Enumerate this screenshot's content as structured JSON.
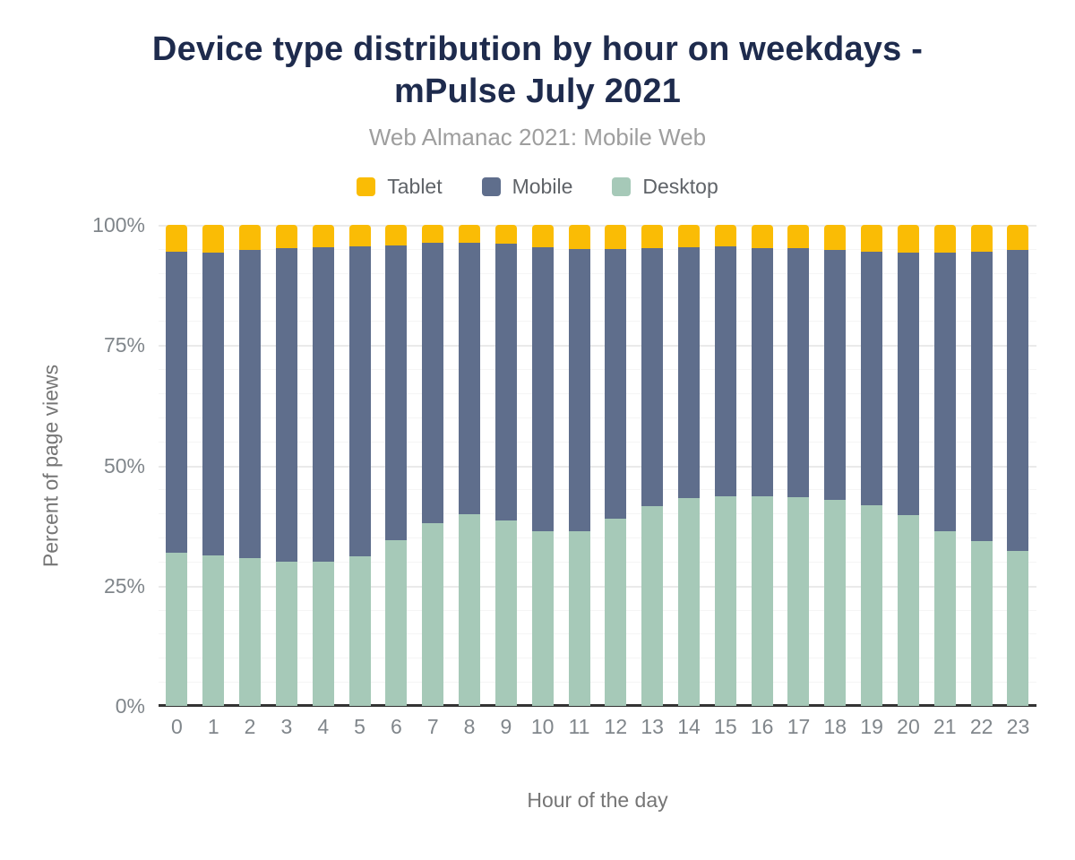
{
  "header": {
    "title_lines": [
      "Device type distribution by hour on weekdays -",
      "mPulse July 2021"
    ],
    "subtitle": "Web Almanac 2021: Mobile Web"
  },
  "legend": [
    {
      "label": "Tablet",
      "color": "#FABC05"
    },
    {
      "label": "Mobile",
      "color": "#5F6E8C"
    },
    {
      "label": "Desktop",
      "color": "#A6C9B8"
    }
  ],
  "axes": {
    "y_title": "Percent of page views",
    "x_title": "Hour of the day",
    "y_ticks": [
      "100%",
      "75%",
      "50%",
      "25%",
      "0%"
    ]
  },
  "colors": {
    "title": "#1E2B4D",
    "subtitle": "#9E9E9E",
    "tick_label": "#80868B",
    "axis_title": "#757575",
    "baseline": "#333333",
    "gridline_major": "#EAEAEA",
    "gridline_minor": "#F5F5F5",
    "background": "#FFFFFF"
  },
  "chart_data": {
    "type": "bar",
    "stacked": true,
    "title": "Device type distribution by hour on weekdays - mPulse July 2021",
    "subtitle": "Web Almanac 2021: Mobile Web",
    "xlabel": "Hour of the day",
    "ylabel": "Percent of page views",
    "ylim": [
      0,
      100
    ],
    "y_tick_format": "percent",
    "y_major_step": 25,
    "y_minor_step": 5,
    "grid": "horizontal",
    "legend_position": "top",
    "categories": [
      0,
      1,
      2,
      3,
      4,
      5,
      6,
      7,
      8,
      9,
      10,
      11,
      12,
      13,
      14,
      15,
      16,
      17,
      18,
      19,
      20,
      21,
      22,
      23
    ],
    "series": [
      {
        "name": "Desktop",
        "color": "#A6C9B8",
        "values": [
          31.9,
          31.2,
          30.8,
          30.0,
          29.9,
          31.1,
          34.5,
          37.9,
          39.8,
          38.6,
          36.4,
          36.4,
          39.0,
          41.6,
          43.2,
          43.6,
          43.5,
          43.3,
          42.8,
          41.8,
          39.6,
          36.4,
          34.2,
          32.3
        ]
      },
      {
        "name": "Mobile",
        "color": "#5F6E8C",
        "values": [
          62.5,
          63.1,
          63.9,
          65.1,
          65.5,
          64.5,
          61.3,
          58.4,
          56.5,
          57.4,
          59.0,
          58.6,
          56.0,
          53.5,
          52.2,
          52.0,
          51.7,
          51.8,
          52.0,
          52.6,
          54.6,
          57.9,
          60.2,
          62.4
        ]
      },
      {
        "name": "Tablet",
        "color": "#FABC05",
        "values": [
          5.6,
          5.7,
          5.3,
          4.9,
          4.6,
          4.4,
          4.2,
          3.7,
          3.7,
          4.0,
          4.6,
          5.0,
          5.0,
          4.9,
          4.6,
          4.4,
          4.8,
          4.9,
          5.2,
          5.6,
          5.8,
          5.7,
          5.6,
          5.3
        ]
      }
    ]
  }
}
